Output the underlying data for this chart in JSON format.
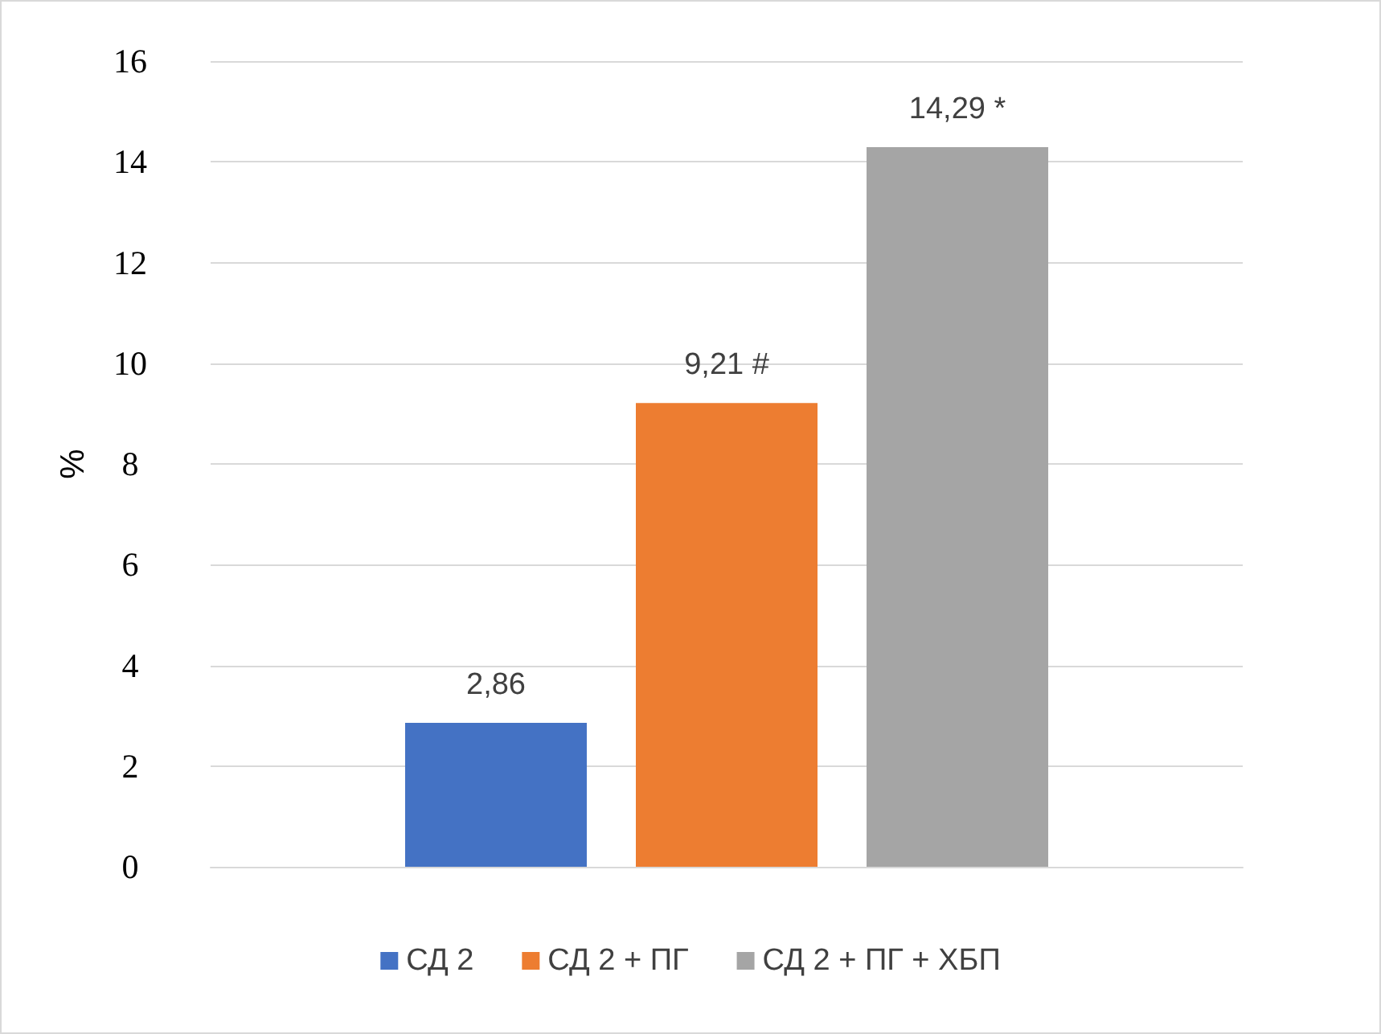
{
  "chart_data": {
    "type": "bar",
    "ylabel": "%",
    "categories": [
      null
    ],
    "series": [
      {
        "name": "СД 2",
        "color": "#4472c4",
        "values": [
          2.86
        ],
        "value_labels": [
          "2,86"
        ]
      },
      {
        "name": "СД 2 + ПГ",
        "color": "#ed7d31",
        "values": [
          9.21
        ],
        "value_labels": [
          "9,21 #"
        ]
      },
      {
        "name": "СД 2 + ПГ + ХБП",
        "color": "#a5a5a5",
        "values": [
          14.29
        ],
        "value_labels": [
          "14,29 *"
        ]
      }
    ],
    "ylim": [
      0,
      16
    ],
    "yticks": [
      0,
      2,
      4,
      6,
      8,
      10,
      12,
      14,
      16
    ],
    "grid": "y",
    "legend": "bottom"
  }
}
